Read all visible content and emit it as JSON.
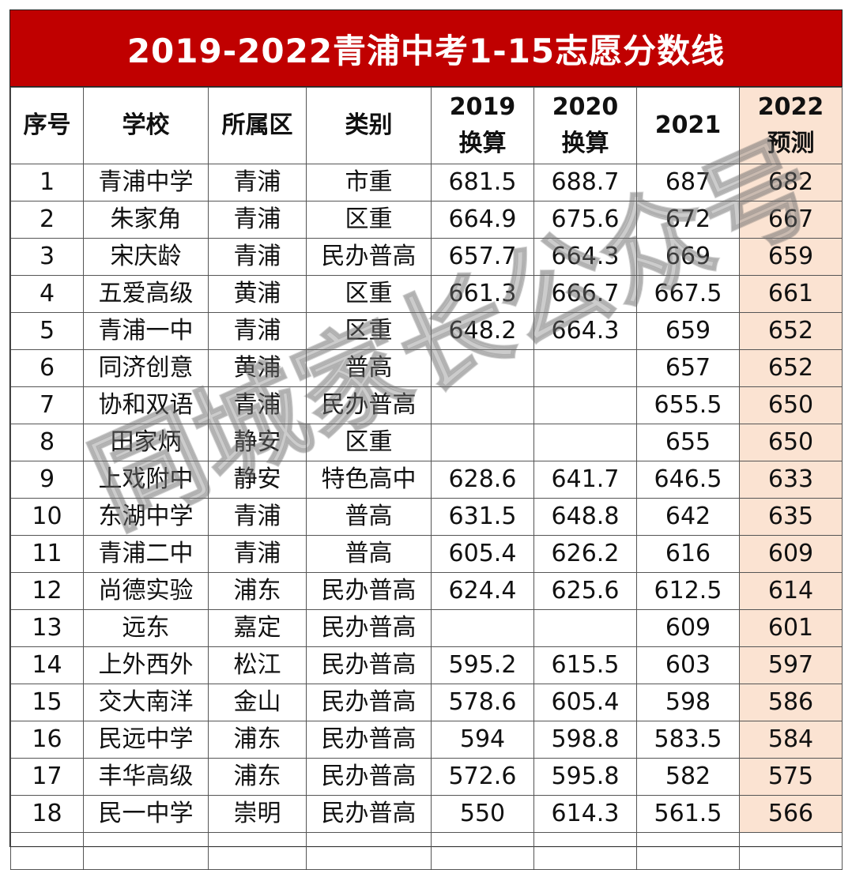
{
  "title": "2019-2022青浦中考1-15志愿分数线",
  "headers": {
    "index": "序号",
    "school": "学校",
    "district": "所属区",
    "type": "类别",
    "y2019_line1": "2019",
    "y2019_line2": "换算",
    "y2020_line1": "2020",
    "y2020_line2": "换算",
    "y2021": "2021",
    "y2022_line1": "2022",
    "y2022_line2": "预测"
  },
  "rows": [
    {
      "index": "1",
      "school": "青浦中学",
      "district": "青浦",
      "type": "市重",
      "y2019": "681.5",
      "y2020": "688.7",
      "y2021": "687",
      "y2022": "682"
    },
    {
      "index": "2",
      "school": "朱家角",
      "district": "青浦",
      "type": "区重",
      "y2019": "664.9",
      "y2020": "675.6",
      "y2021": "672",
      "y2022": "667"
    },
    {
      "index": "3",
      "school": "宋庆龄",
      "district": "青浦",
      "type": "民办普高",
      "y2019": "657.7",
      "y2020": "664.3",
      "y2021": "669",
      "y2022": "659"
    },
    {
      "index": "4",
      "school": "五爱高级",
      "district": "黄浦",
      "type": "区重",
      "y2019": "661.3",
      "y2020": "666.7",
      "y2021": "667.5",
      "y2022": "661"
    },
    {
      "index": "5",
      "school": "青浦一中",
      "district": "青浦",
      "type": "区重",
      "y2019": "648.2",
      "y2020": "664.3",
      "y2021": "659",
      "y2022": "652"
    },
    {
      "index": "6",
      "school": "同济创意",
      "district": "黄浦",
      "type": "普高",
      "y2019": "",
      "y2020": "",
      "y2021": "657",
      "y2022": "652"
    },
    {
      "index": "7",
      "school": "协和双语",
      "district": "青浦",
      "type": "民办普高",
      "y2019": "",
      "y2020": "",
      "y2021": "655.5",
      "y2022": "650"
    },
    {
      "index": "8",
      "school": "田家炳",
      "district": "静安",
      "type": "区重",
      "y2019": "",
      "y2020": "",
      "y2021": "655",
      "y2022": "650"
    },
    {
      "index": "9",
      "school": "上戏附中",
      "district": "静安",
      "type": "特色高中",
      "y2019": "628.6",
      "y2020": "641.7",
      "y2021": "646.5",
      "y2022": "633"
    },
    {
      "index": "10",
      "school": "东湖中学",
      "district": "青浦",
      "type": "普高",
      "y2019": "631.5",
      "y2020": "648.8",
      "y2021": "642",
      "y2022": "635"
    },
    {
      "index": "11",
      "school": "青浦二中",
      "district": "青浦",
      "type": "普高",
      "y2019": "605.4",
      "y2020": "626.2",
      "y2021": "616",
      "y2022": "609"
    },
    {
      "index": "12",
      "school": "尚德实验",
      "district": "浦东",
      "type": "民办普高",
      "y2019": "624.4",
      "y2020": "625.6",
      "y2021": "612.5",
      "y2022": "614"
    },
    {
      "index": "13",
      "school": "远东",
      "district": "嘉定",
      "type": "民办普高",
      "y2019": "",
      "y2020": "",
      "y2021": "609",
      "y2022": "601"
    },
    {
      "index": "14",
      "school": "上外西外",
      "district": "松江",
      "type": "民办普高",
      "y2019": "595.2",
      "y2020": "615.5",
      "y2021": "603",
      "y2022": "597"
    },
    {
      "index": "15",
      "school": "交大南洋",
      "district": "金山",
      "type": "民办普高",
      "y2019": "578.6",
      "y2020": "605.4",
      "y2021": "598",
      "y2022": "586"
    },
    {
      "index": "16",
      "school": "民远中学",
      "district": "浦东",
      "type": "民办普高",
      "y2019": "594",
      "y2020": "598.8",
      "y2021": "583.5",
      "y2022": "584"
    },
    {
      "index": "17",
      "school": "丰华高级",
      "district": "浦东",
      "type": "民办普高",
      "y2019": "572.6",
      "y2020": "595.8",
      "y2021": "582",
      "y2022": "575"
    },
    {
      "index": "18",
      "school": "民一中学",
      "district": "崇明",
      "type": "民办普高",
      "y2019": "550",
      "y2020": "614.3",
      "y2021": "561.5",
      "y2022": "566"
    }
  ],
  "watermark": "同城家长公众号",
  "colors": {
    "title_bg": "#c00000",
    "title_text": "#ffffff",
    "prediction_column_bg": "#fbe3d2"
  }
}
